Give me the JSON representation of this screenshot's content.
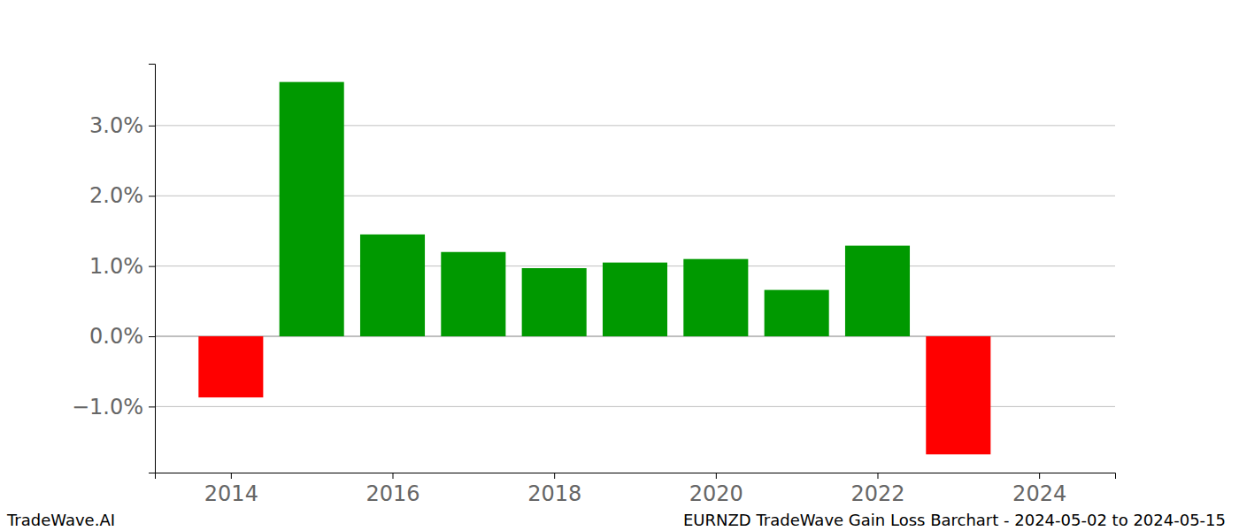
{
  "chart_data": {
    "type": "bar",
    "title": "EURNZD TradeWave Gain Loss Barchart - 2024-05-02 to 2024-05-15",
    "annotations": [
      "TradeWave.AI"
    ],
    "x": [
      2014,
      2015,
      2016,
      2017,
      2018,
      2019,
      2020,
      2021,
      2022,
      2023
    ],
    "values": [
      -0.87,
      3.62,
      1.45,
      1.2,
      0.97,
      1.05,
      1.1,
      0.66,
      1.29,
      -1.68
    ],
    "colors": [
      "#ff0000",
      "#009900",
      "#009900",
      "#009900",
      "#009900",
      "#009900",
      "#009900",
      "#009900",
      "#009900",
      "#ff0000"
    ],
    "xlim": [
      2013.06,
      2024.94
    ],
    "xticks": [
      2014,
      2016,
      2018,
      2020,
      2022,
      2024
    ],
    "ylim": [
      -1.94,
      3.88
    ],
    "yticks": [
      {
        "value": -1,
        "label": "−1.0%"
      },
      {
        "value": 0,
        "label": "0.0%"
      },
      {
        "value": 1,
        "label": "1.0%"
      },
      {
        "value": 2,
        "label": "2.0%"
      },
      {
        "value": 3,
        "label": "3.0%"
      }
    ],
    "grid": true
  }
}
